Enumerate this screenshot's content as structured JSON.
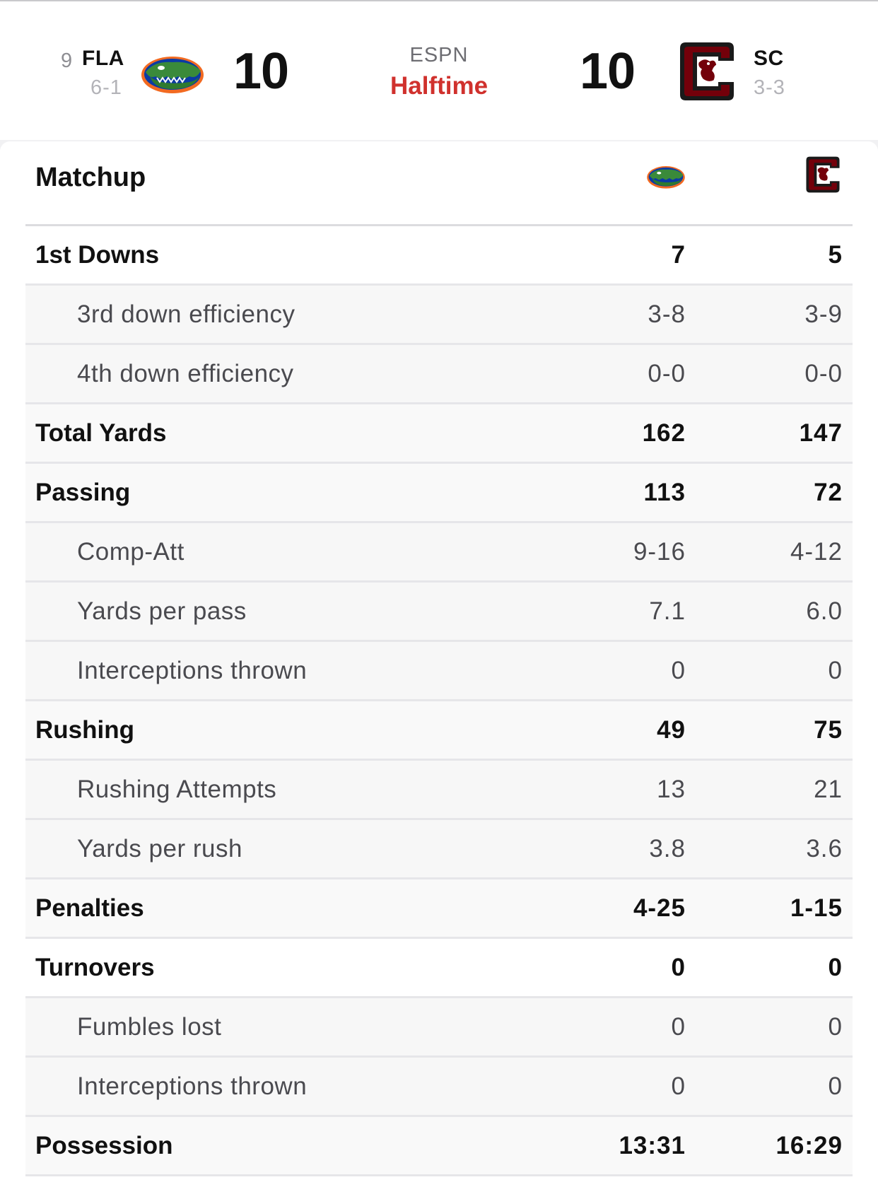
{
  "header": {
    "away": {
      "rank": "9",
      "abbr": "FLA",
      "record": "6-1",
      "score": "10",
      "logo": "gators-logo"
    },
    "home": {
      "abbr": "SC",
      "record": "3-3",
      "score": "10",
      "logo": "gamecocks-logo"
    },
    "network": "ESPN",
    "status": "Halftime",
    "status_color": "#d0312d"
  },
  "matchup": {
    "title": "Matchup",
    "rows": [
      {
        "label": "1st Downs",
        "away": "7",
        "home": "5",
        "style": "main"
      },
      {
        "label": "3rd down efficiency",
        "away": "3-8",
        "home": "3-9",
        "style": "sub"
      },
      {
        "label": "4th down efficiency",
        "away": "0-0",
        "home": "0-0",
        "style": "sub"
      },
      {
        "label": "Total Yards",
        "away": "162",
        "home": "147",
        "style": "alt"
      },
      {
        "label": "Passing",
        "away": "113",
        "home": "72",
        "style": "alt"
      },
      {
        "label": "Comp-Att",
        "away": "9-16",
        "home": "4-12",
        "style": "sub"
      },
      {
        "label": "Yards per pass",
        "away": "7.1",
        "home": "6.0",
        "style": "sub"
      },
      {
        "label": "Interceptions thrown",
        "away": "0",
        "home": "0",
        "style": "sub"
      },
      {
        "label": "Rushing",
        "away": "49",
        "home": "75",
        "style": "alt"
      },
      {
        "label": "Rushing Attempts",
        "away": "13",
        "home": "21",
        "style": "sub"
      },
      {
        "label": "Yards per rush",
        "away": "3.8",
        "home": "3.6",
        "style": "sub"
      },
      {
        "label": "Penalties",
        "away": "4-25",
        "home": "1-15",
        "style": "alt"
      },
      {
        "label": "Turnovers",
        "away": "0",
        "home": "0",
        "style": "main"
      },
      {
        "label": "Fumbles lost",
        "away": "0",
        "home": "0",
        "style": "sub"
      },
      {
        "label": "Interceptions thrown",
        "away": "0",
        "home": "0",
        "style": "sub"
      },
      {
        "label": "Possession",
        "away": "13:31",
        "home": "16:29",
        "style": "alt"
      }
    ]
  },
  "colors": {
    "gators_orange": "#f26a21",
    "gators_blue": "#0b3aa4",
    "gators_green": "#3a8a3a",
    "gamecocks_garnet": "#73000a"
  }
}
